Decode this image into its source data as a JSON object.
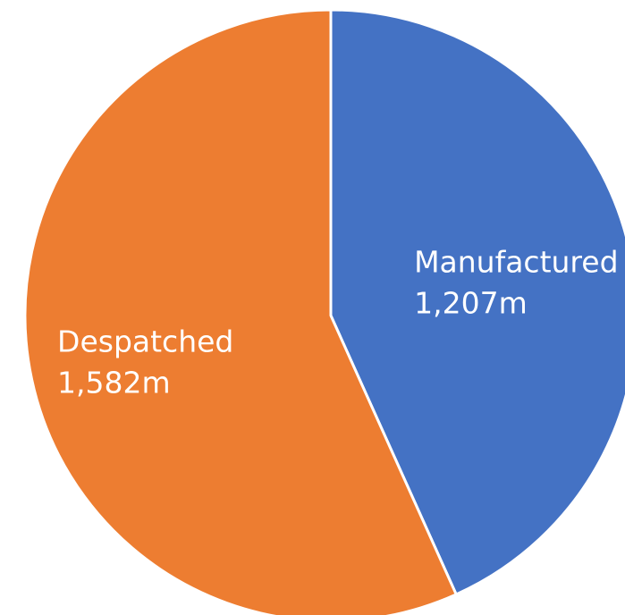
{
  "chart_data": {
    "type": "pie",
    "title": "",
    "slices": [
      {
        "label": "Manufactured",
        "value": 1207,
        "value_label": "1,207m",
        "color": "#4472C4"
      },
      {
        "label": "Despatched",
        "value": 1582,
        "value_label": "1,582m",
        "color": "#ED7D31"
      }
    ],
    "start": "12 o'clock",
    "direction": "clockwise",
    "legend": "none",
    "data_labels": "inside"
  }
}
